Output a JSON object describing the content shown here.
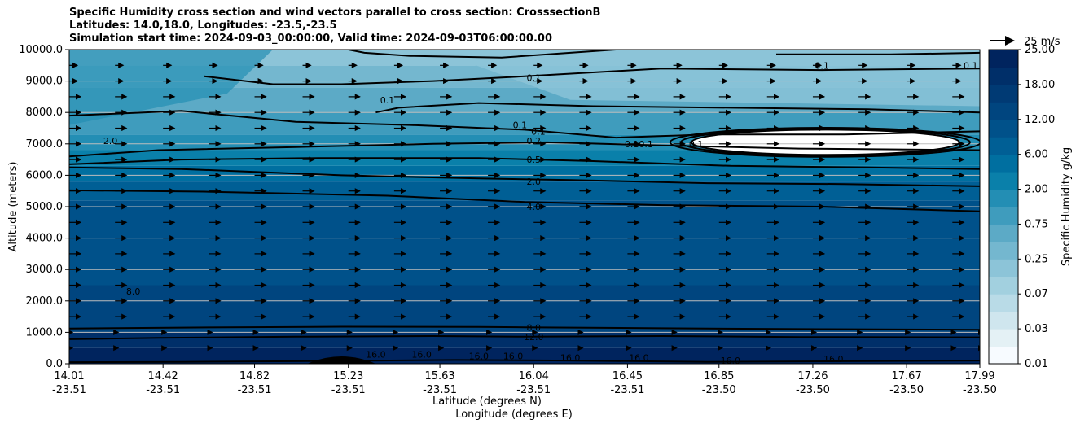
{
  "chart_data": {
    "type": "heatmap",
    "title_lines": [
      "Specific Humidity cross section and wind vectors parallel to cross section: CrosssectionB",
      "Latitudes: 14.0,18.0, Longitudes: -23.5,-23.5",
      "Simulation start time: 2024-09-03_00:00:00, Valid time: 2024-09-03T06:00:00.00"
    ],
    "ylabel": "Altitude (meters)",
    "xlabel_lat": "Latitude (degrees N)",
    "xlabel_lon": "Longitude (degrees E)",
    "ylim": [
      0,
      10000
    ],
    "y_ticks": [
      "0.0",
      "1000.0",
      "2000.0",
      "3000.0",
      "4000.0",
      "5000.0",
      "6000.0",
      "7000.0",
      "8000.0",
      "9000.0",
      "10000.0"
    ],
    "x_ticks": [
      {
        "lat": "14.01",
        "lon": "-23.51"
      },
      {
        "lat": "14.42",
        "lon": "-23.51"
      },
      {
        "lat": "14.82",
        "lon": "-23.51"
      },
      {
        "lat": "15.23",
        "lon": "-23.51"
      },
      {
        "lat": "15.63",
        "lon": "-23.51"
      },
      {
        "lat": "16.04",
        "lon": "-23.51"
      },
      {
        "lat": "16.45",
        "lon": "-23.51"
      },
      {
        "lat": "16.85",
        "lon": "-23.50"
      },
      {
        "lat": "17.26",
        "lon": "-23.50"
      },
      {
        "lat": "17.67",
        "lon": "-23.50"
      },
      {
        "lat": "17.99",
        "lon": "-23.50"
      }
    ],
    "colorbar": {
      "label": "Specific Humidity g/kg",
      "tick_labels": [
        "0.01",
        "0.03",
        "0.07",
        "0.25",
        "0.75",
        "2.00",
        "6.00",
        "12.00",
        "18.00",
        "25.00"
      ],
      "colors": [
        "#f7fbff",
        "#e4f1f5",
        "#cfe6ee",
        "#b9dbe7",
        "#a2d0df",
        "#8cc4d8",
        "#74b7cf",
        "#5caac6",
        "#3f9cbd",
        "#238eb4",
        "#0a80aa",
        "#006fa0",
        "#005f95",
        "#00518a",
        "#00457f",
        "#003a74",
        "#002f69",
        "#00245e"
      ]
    },
    "wind_reference": "25 m/s",
    "contour_levels": [
      "0.1",
      "0.2",
      "0.5",
      "2.0",
      "4.0",
      "8.0",
      "12.0",
      "16.0"
    ],
    "contour_labels": [
      {
        "text": "0.1",
        "lat": 15.4,
        "alt": 8400
      },
      {
        "text": "0.1",
        "lat": 16.04,
        "alt": 9100
      },
      {
        "text": "0.1",
        "lat": 17.3,
        "alt": 9500
      },
      {
        "text": "0.1",
        "lat": 17.95,
        "alt": 9500
      },
      {
        "text": "0.1",
        "lat": 15.98,
        "alt": 7600
      },
      {
        "text": "0.1",
        "lat": 16.06,
        "alt": 7400
      },
      {
        "text": "0.10.1",
        "lat": 16.5,
        "alt": 7000
      },
      {
        "text": "0.1",
        "lat": 16.75,
        "alt": 7000
      },
      {
        "text": "0.2",
        "lat": 16.04,
        "alt": 7100
      },
      {
        "text": "0.5",
        "lat": 16.04,
        "alt": 6500
      },
      {
        "text": "2.0",
        "lat": 14.19,
        "alt": 7100
      },
      {
        "text": "2.0",
        "lat": 16.04,
        "alt": 5800
      },
      {
        "text": "4.0",
        "lat": 16.04,
        "alt": 5000
      },
      {
        "text": "8.0",
        "lat": 14.29,
        "alt": 2300
      },
      {
        "text": "8.0",
        "lat": 16.04,
        "alt": 1150
      },
      {
        "text": "12.0",
        "lat": 16.04,
        "alt": 850
      },
      {
        "text": "16.0",
        "lat": 15.35,
        "alt": 300
      },
      {
        "text": "16.0",
        "lat": 15.55,
        "alt": 300
      },
      {
        "text": "16.0",
        "lat": 15.8,
        "alt": 250
      },
      {
        "text": "16.0",
        "lat": 15.95,
        "alt": 250
      },
      {
        "text": "16.0",
        "lat": 16.2,
        "alt": 200
      },
      {
        "text": "16.0",
        "lat": 16.5,
        "alt": 200
      },
      {
        "text": "16.0",
        "lat": 16.9,
        "alt": 100
      },
      {
        "text": "16.0",
        "lat": 17.35,
        "alt": 150
      }
    ],
    "contour_lines": [
      {
        "level": "16.0",
        "points": [
          [
            14.01,
            50
          ],
          [
            14.5,
            60
          ],
          [
            15.2,
            90
          ],
          [
            15.7,
            120
          ],
          [
            16.2,
            100
          ],
          [
            16.8,
            60
          ],
          [
            17.4,
            80
          ],
          [
            17.99,
            100
          ]
        ]
      },
      {
        "level": "12.0",
        "points": [
          [
            14.01,
            780
          ],
          [
            14.4,
            820
          ],
          [
            15.0,
            860
          ],
          [
            15.6,
            880
          ],
          [
            16.0,
            860
          ],
          [
            16.6,
            880
          ],
          [
            17.2,
            850
          ],
          [
            17.99,
            840
          ]
        ]
      },
      {
        "level": "8.0",
        "points": [
          [
            14.01,
            1120
          ],
          [
            14.5,
            1150
          ],
          [
            15.2,
            1180
          ],
          [
            15.8,
            1170
          ],
          [
            16.0,
            1160
          ],
          [
            16.6,
            1130
          ],
          [
            17.3,
            1100
          ],
          [
            17.99,
            1080
          ]
        ]
      },
      {
        "level": "4.0",
        "points": [
          [
            14.01,
            5520
          ],
          [
            14.6,
            5480
          ],
          [
            15.4,
            5350
          ],
          [
            16.0,
            5150
          ],
          [
            16.6,
            5050
          ],
          [
            17.3,
            5000
          ],
          [
            17.99,
            4850
          ]
        ]
      },
      {
        "level": "2.0",
        "points": [
          [
            14.01,
            6250
          ],
          [
            14.5,
            6200
          ],
          [
            15.2,
            6000
          ],
          [
            15.8,
            5900
          ],
          [
            16.2,
            5850
          ],
          [
            16.8,
            5750
          ],
          [
            17.4,
            5720
          ],
          [
            17.99,
            5650
          ]
        ]
      },
      {
        "level": "0.5",
        "points": [
          [
            14.01,
            6350
          ],
          [
            14.5,
            6500
          ],
          [
            15.1,
            6550
          ],
          [
            15.8,
            6550
          ],
          [
            16.3,
            6450
          ],
          [
            16.9,
            6300
          ],
          [
            17.5,
            6250
          ],
          [
            17.99,
            6200
          ]
        ]
      },
      {
        "level": "0.2",
        "points": [
          [
            14.01,
            6600
          ],
          [
            14.4,
            6800
          ],
          [
            15.0,
            6900
          ],
          [
            15.6,
            7000
          ],
          [
            16.1,
            7050
          ],
          [
            16.6,
            6950
          ],
          [
            17.2,
            6850
          ],
          [
            17.99,
            6800
          ]
        ]
      },
      {
        "level": "0.1",
        "points": [
          [
            14.01,
            7900
          ],
          [
            14.5,
            8050
          ],
          [
            15.0,
            7700
          ],
          [
            15.5,
            7600
          ],
          [
            16.0,
            7450
          ],
          [
            16.4,
            7200
          ],
          [
            16.8,
            7300
          ],
          [
            17.4,
            7300
          ],
          [
            17.99,
            7400
          ]
        ]
      },
      {
        "level": "0.1",
        "points": [
          [
            15.35,
            8000
          ],
          [
            15.45,
            8150
          ],
          [
            15.8,
            8300
          ],
          [
            16.3,
            8200
          ],
          [
            16.9,
            8150
          ],
          [
            17.5,
            8100
          ],
          [
            17.99,
            8000
          ]
        ]
      },
      {
        "level": "0.1",
        "points": [
          [
            14.6,
            9150
          ],
          [
            14.9,
            8900
          ],
          [
            15.2,
            8900
          ],
          [
            15.6,
            9000
          ],
          [
            16.0,
            9150
          ],
          [
            16.6,
            9400
          ],
          [
            17.3,
            9350
          ],
          [
            17.99,
            9400
          ]
        ]
      },
      {
        "level": "0.1",
        "points": [
          [
            15.23,
            10000
          ],
          [
            15.3,
            9900
          ],
          [
            15.5,
            9800
          ],
          [
            15.9,
            9750
          ],
          [
            16.2,
            9900
          ],
          [
            16.4,
            10000
          ]
        ]
      },
      {
        "level": "0.1",
        "points": [
          [
            17.1,
            9850
          ],
          [
            17.6,
            9850
          ],
          [
            17.99,
            9900
          ]
        ]
      }
    ],
    "dry_pocket": {
      "lat_min": 16.73,
      "lat_max": 17.9,
      "alt_min": 6650,
      "alt_max": 7450
    },
    "wind_rows_alt": [
      500,
      1000,
      1500,
      2000,
      2500,
      3000,
      3500,
      4000,
      4500,
      5000,
      5500,
      6000,
      6500,
      7000,
      7500,
      8000,
      8500,
      9000,
      9500
    ],
    "wind_cols_lat": [
      14.01,
      14.21,
      14.42,
      14.62,
      14.82,
      15.03,
      15.23,
      15.43,
      15.63,
      15.84,
      16.04,
      16.24,
      16.45,
      16.65,
      16.85,
      17.06,
      17.26,
      17.46,
      17.67,
      17.87,
      17.99
    ]
  }
}
